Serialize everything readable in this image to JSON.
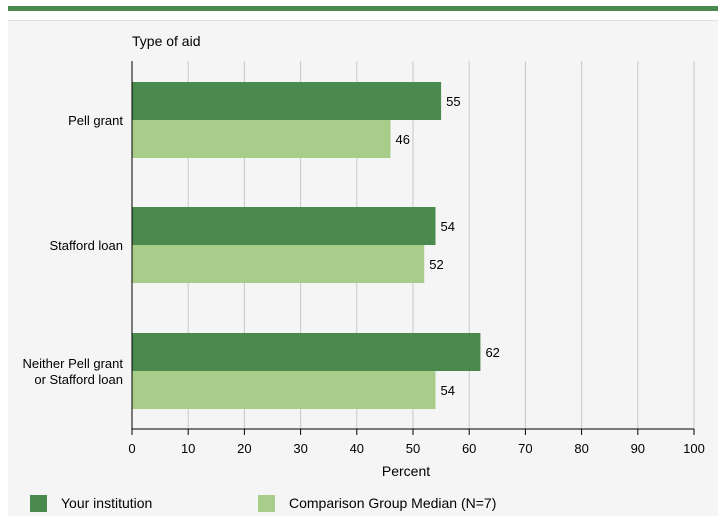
{
  "colors": {
    "top_bar": "#4a8a4f",
    "your_institution": "#4b8a4e",
    "comparison": "#a8cc8a",
    "grid": "#c8c8c8",
    "axis": "#000000",
    "panel": "#f5f5f5"
  },
  "chart_data": {
    "type": "bar",
    "orientation": "horizontal",
    "title": "",
    "category_axis_title": "Type of aid",
    "xlabel": "Percent",
    "xlim": [
      0,
      100
    ],
    "xticks": [
      0,
      10,
      20,
      30,
      40,
      50,
      60,
      70,
      80,
      90,
      100
    ],
    "grid": true,
    "legend_position": "bottom",
    "categories": [
      "Pell grant",
      "Stafford loan",
      "Neither Pell grant or Stafford loan"
    ],
    "category_lines": [
      [
        "Pell grant"
      ],
      [
        "Stafford loan"
      ],
      [
        "Neither Pell grant",
        "or Stafford loan"
      ]
    ],
    "series": [
      {
        "name": "Your institution",
        "values": [
          55,
          54,
          62
        ]
      },
      {
        "name": "Comparison Group Median (N=7)",
        "values": [
          46,
          52,
          54
        ]
      }
    ]
  }
}
